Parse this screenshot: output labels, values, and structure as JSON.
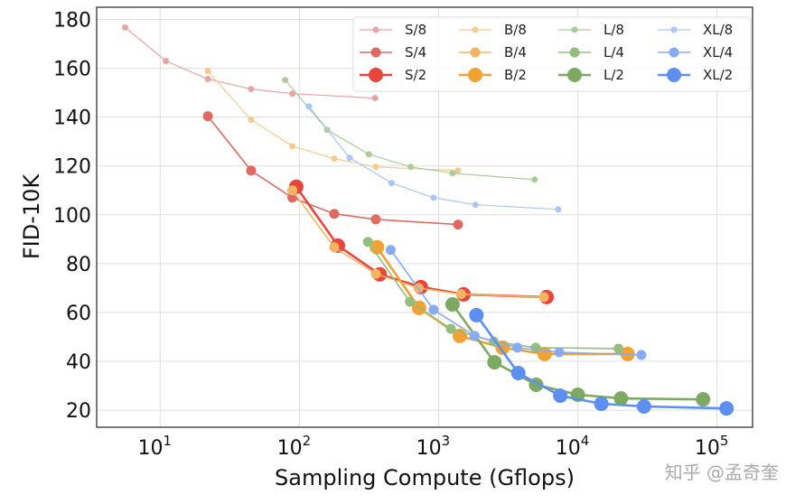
{
  "chart_data": {
    "type": "line",
    "title": "",
    "xlabel": "Sampling Compute (Gflops)",
    "ylabel": "FID-10K",
    "xscale": "log",
    "xlim": [
      3.5,
      180000
    ],
    "ylim": [
      13,
      185
    ],
    "xticks": [
      {
        "base": "10",
        "exp": "1",
        "value": 10
      },
      {
        "base": "10",
        "exp": "2",
        "value": 100
      },
      {
        "base": "10",
        "exp": "3",
        "value": 1000
      },
      {
        "base": "10",
        "exp": "4",
        "value": 10000
      },
      {
        "base": "10",
        "exp": "5",
        "value": 100000
      }
    ],
    "yticks": [
      20,
      40,
      60,
      80,
      100,
      120,
      140,
      160,
      180
    ],
    "grid": true,
    "legend_position": "top-right",
    "series": [
      {
        "name": "S/8",
        "color": "#e9a3a3",
        "size": "small",
        "x": [
          5.6,
          11,
          22,
          45,
          89,
          350
        ],
        "y": [
          176.7,
          163,
          155.6,
          151.5,
          149.6,
          147.8
        ]
      },
      {
        "name": "S/4",
        "color": "#e06a63",
        "size": "medium",
        "x": [
          22,
          45,
          89,
          178,
          354,
          1380
        ],
        "y": [
          140.4,
          118.1,
          107,
          100.4,
          98.1,
          96
        ]
      },
      {
        "name": "S/2",
        "color": "#e8453c",
        "size": "large",
        "x": [
          95,
          189,
          378,
          745,
          1510,
          5970
        ],
        "y": [
          111.5,
          87.4,
          75.6,
          70.4,
          67.4,
          66.3
        ]
      },
      {
        "name": "B/8",
        "color": "#f5ca8e",
        "size": "small",
        "x": [
          22,
          45,
          89,
          178,
          354,
          1380
        ],
        "y": [
          158.9,
          138.9,
          128.1,
          123,
          119.6,
          118.1
        ]
      },
      {
        "name": "B/4",
        "color": "#f3b562",
        "size": "medium",
        "x": [
          89,
          178,
          354,
          720,
          1450,
          5700
        ],
        "y": [
          110,
          86.7,
          75.8,
          70,
          67.5,
          66.3
        ]
      },
      {
        "name": "B/2",
        "color": "#f0a232",
        "size": "large",
        "x": [
          361,
          724,
          1420,
          2880,
          5770,
          22800
        ],
        "y": [
          86.7,
          61.9,
          50.4,
          45.6,
          43,
          43
        ]
      },
      {
        "name": "L/8",
        "color": "#abcd9b",
        "size": "small",
        "x": [
          79,
          158,
          316,
          630,
          1260,
          4900
        ],
        "y": [
          155.2,
          134.8,
          124.8,
          119.6,
          117,
          114.4
        ]
      },
      {
        "name": "L/4",
        "color": "#95bd7e",
        "size": "medium",
        "x": [
          311,
          622,
          1225,
          2490,
          4980,
          19600
        ],
        "y": [
          88.9,
          64.4,
          53.3,
          48.1,
          45.6,
          45.2
        ]
      },
      {
        "name": "L/2",
        "color": "#7caa62",
        "size": "large",
        "x": [
          1260,
          2520,
          5020,
          10000,
          20400,
          79400
        ],
        "y": [
          63.3,
          39.6,
          30.4,
          26.3,
          24.8,
          24.4
        ]
      },
      {
        "name": "XL/8",
        "color": "#abc6f2",
        "size": "small",
        "x": [
          117,
          230,
          460,
          920,
          1840,
          7240
        ],
        "y": [
          144.4,
          123.3,
          113,
          107,
          104.1,
          102.2
        ]
      },
      {
        "name": "XL/4",
        "color": "#88abf1",
        "size": "medium",
        "x": [
          453,
          920,
          1815,
          3680,
          7360,
          28600
        ],
        "y": [
          85.6,
          61.1,
          50.4,
          45.6,
          43.7,
          42.6
        ]
      },
      {
        "name": "XL/2",
        "color": "#5c8ff1",
        "size": "large",
        "x": [
          1870,
          3740,
          7480,
          14750,
          29900,
          117000
        ],
        "y": [
          58.9,
          35.2,
          25.9,
          22.6,
          21.5,
          20.7
        ]
      }
    ]
  },
  "watermark": "知乎 @孟奇奎"
}
